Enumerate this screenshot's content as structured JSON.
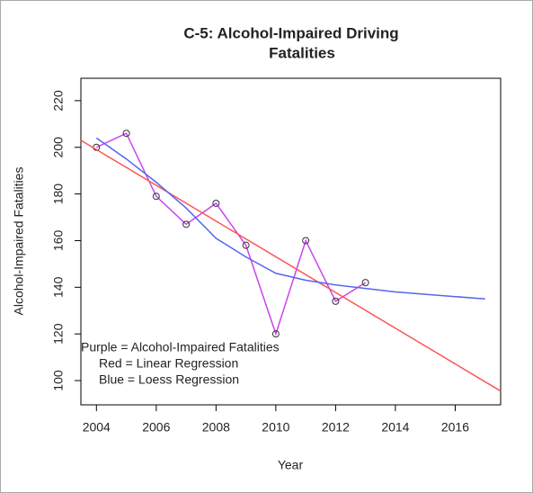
{
  "chart_data": {
    "type": "line",
    "title_lines": [
      "C-5: Alcohol-Impaired Driving",
      "Fatalities"
    ],
    "x_label": "Year",
    "y_label": "Alcohol-Impaired Fatalities",
    "annotations": [
      "Purple = Alcohol-Impaired Fatalities",
      "Red = Linear Regression",
      "Blue = Loess Regression"
    ],
    "series": [
      {
        "color": "#cc44ee",
        "markers": true,
        "x": [
          2004,
          2005,
          2006,
          2007,
          2008,
          2009,
          2010,
          2011,
          2012,
          2013
        ],
        "values": [
          200,
          206,
          179,
          167,
          176,
          158,
          120,
          160,
          134,
          142
        ]
      },
      {
        "color": "#ff5555",
        "markers": false,
        "x": [
          2003.48,
          2017.52
        ],
        "values": [
          203,
          95.5
        ]
      },
      {
        "color": "#5566ee",
        "markers": false,
        "x": [
          2004,
          2005,
          2006,
          2007,
          2008,
          2009,
          2010,
          2011,
          2012,
          2013,
          2014,
          2015,
          2016,
          2017
        ],
        "values": [
          204,
          195,
          185,
          174,
          161,
          153,
          146,
          143,
          141,
          139.5,
          138,
          137,
          136,
          135
        ]
      }
    ],
    "xlim": [
      2003.48,
      2017.52
    ],
    "xticks": [
      2004,
      2006,
      2008,
      2010,
      2012,
      2014,
      2016
    ],
    "ylim": [
      89.6,
      229.6
    ],
    "yticks": [
      100,
      120,
      140,
      160,
      180,
      200,
      220
    ]
  }
}
